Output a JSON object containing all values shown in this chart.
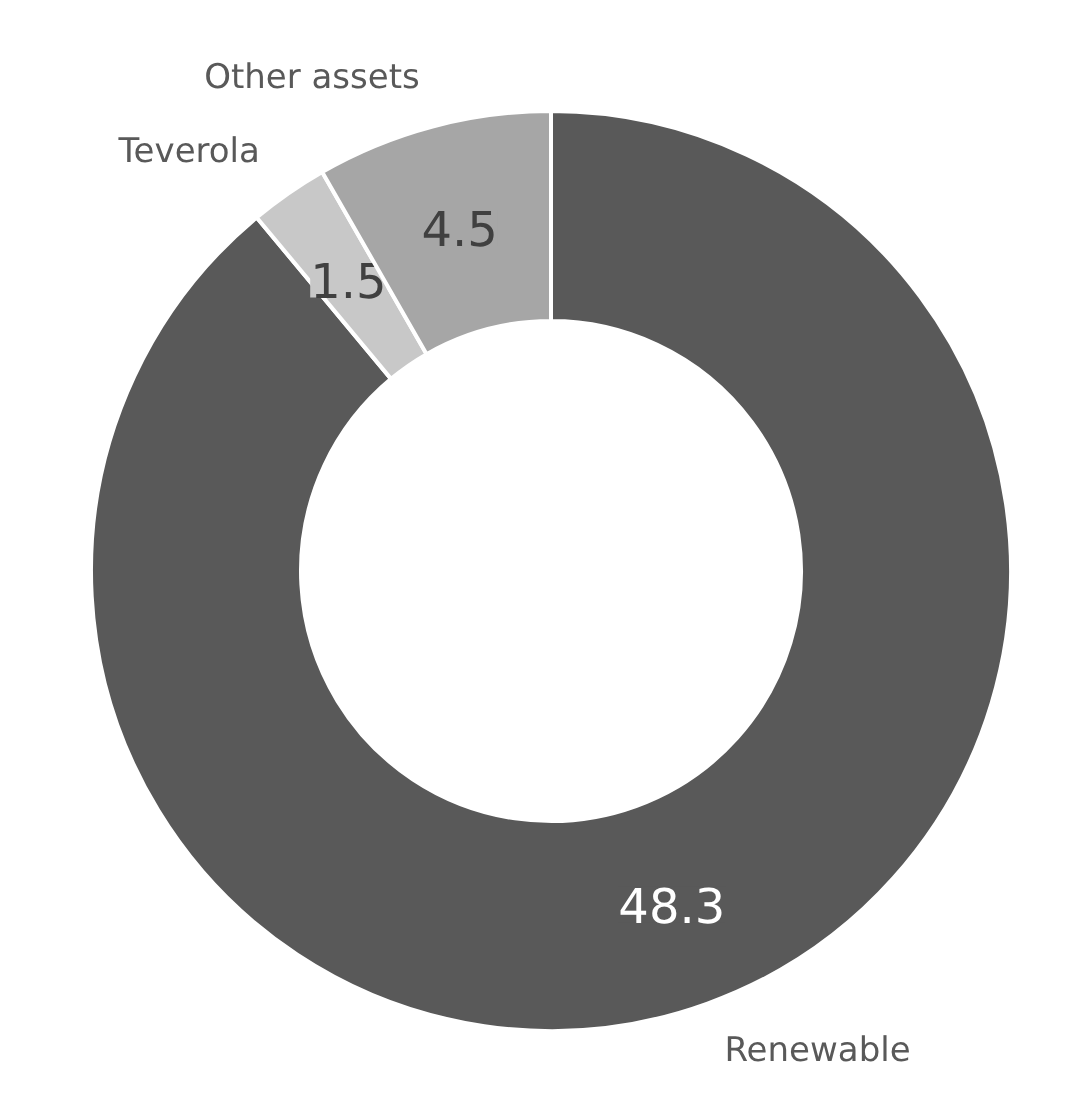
{
  "chart_data": {
    "type": "donut",
    "categories": [
      "Renewable",
      "Teverola",
      "Other assets"
    ],
    "values": [
      48.3,
      1.5,
      4.5
    ],
    "colors": [
      "#595959",
      "#c8c8c8",
      "#a6a6a6"
    ],
    "data_labels": true
  }
}
